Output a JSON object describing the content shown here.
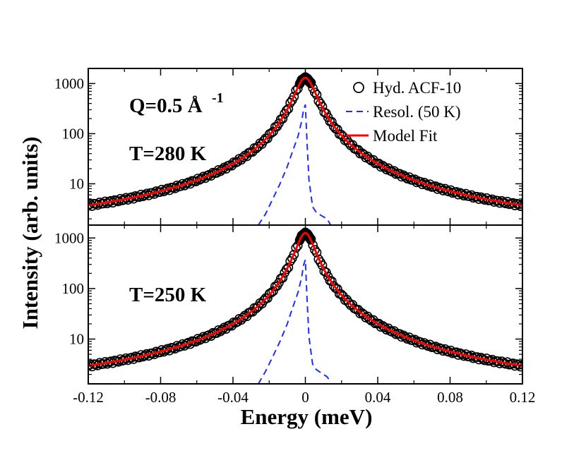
{
  "chart_data": {
    "type": "line",
    "xlabel": "Energy (meV)",
    "ylabel": "Intensity (arb. units)",
    "xlim": [
      -0.12,
      0.12
    ],
    "x_ticks": [
      -0.12,
      -0.08,
      -0.04,
      0,
      0.04,
      0.08,
      0.12
    ],
    "x_tick_labels": [
      "-0.12",
      "-0.08",
      "-0.04",
      "0",
      "0.04",
      "0.08",
      "0.12"
    ],
    "y_scale": "log",
    "y_tick_labels": [
      "10",
      "100",
      "1000"
    ],
    "legend": {
      "placement": "top-right of upper panel",
      "entries": [
        {
          "label": "Hyd. ACF-10",
          "style": "open-circle",
          "color": "#000000"
        },
        {
          "label": "Resol. (50 K)",
          "style": "dashed",
          "color": "#1f2cff"
        },
        {
          "label": "Model Fit",
          "style": "solid",
          "color": "#ff0000"
        }
      ]
    },
    "panels": [
      {
        "annotations": {
          "q": "Q=0.5 Å",
          "q_exp": "-1",
          "temp": "T=280 K"
        },
        "ylim": [
          1.5,
          2000
        ],
        "y_ticks": [
          10,
          100,
          1000
        ],
        "series": [
          {
            "name": "Hyd. ACF-10",
            "peak": 1300,
            "halfwidth": 0.0055,
            "background": 1.0
          },
          {
            "name": "Resol. (50 K)",
            "x": [
              -0.026,
              -0.022,
              -0.018,
              -0.014,
              -0.01,
              -0.007,
              -0.004,
              -0.002,
              -0.001,
              0,
              0.001,
              0.002,
              0.004,
              0.006,
              0.009,
              0.012,
              0.014
            ],
            "y": [
              1.5,
              2.5,
              5,
              10,
              22,
              45,
              90,
              180,
              300,
              380,
              60,
              12,
              3.5,
              2.7,
              2.3,
              2.0,
              1.5
            ]
          },
          {
            "name": "Model Fit",
            "peak": 1300,
            "halfwidth": 0.0055,
            "background": 1.0
          }
        ]
      },
      {
        "annotations": {
          "temp": "T=250 K"
        },
        "ylim": [
          1.3,
          1800
        ],
        "y_ticks": [
          10,
          100,
          1000
        ],
        "series": [
          {
            "name": "Hyd. ACF-10",
            "peak": 1250,
            "halfwidth": 0.005,
            "background": 0.8
          },
          {
            "name": "Resol. (50 K)",
            "x": [
              -0.026,
              -0.022,
              -0.018,
              -0.014,
              -0.01,
              -0.007,
              -0.004,
              -0.002,
              -0.001,
              0,
              0.001,
              0.002,
              0.004,
              0.006,
              0.009,
              0.012,
              0.014
            ],
            "y": [
              1.3,
              2.3,
              4.5,
              9,
              20,
              42,
              85,
              170,
              290,
              370,
              55,
              11,
              3.2,
              2.5,
              2.1,
              1.8,
              1.4
            ]
          },
          {
            "name": "Model Fit",
            "peak": 1250,
            "halfwidth": 0.005,
            "background": 0.8
          }
        ]
      }
    ]
  }
}
